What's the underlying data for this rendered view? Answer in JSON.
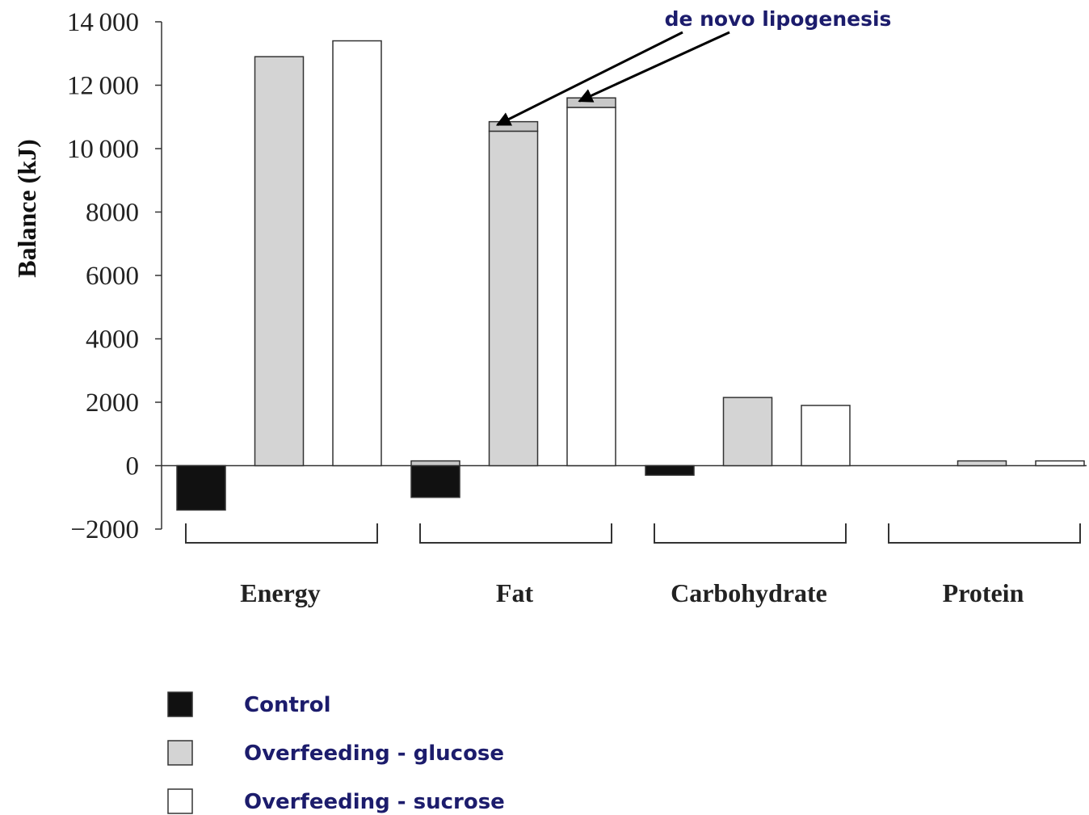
{
  "chart_data": {
    "type": "bar",
    "y_label": "Balance (kJ)",
    "categories": [
      "Energy",
      "Fat",
      "Carbohydrate",
      "Protein"
    ],
    "series": [
      {
        "name": "Control",
        "color": "#111111",
        "values": [
          -1400,
          -1000,
          -300,
          0
        ]
      },
      {
        "name": "Overfeeding - glucose",
        "color": "#d4d4d4",
        "values": [
          12900,
          10550,
          2150,
          150
        ]
      },
      {
        "name": "Overfeeding - sucrose",
        "color": "#ffffff",
        "values": [
          13400,
          11300,
          1900,
          150
        ]
      }
    ],
    "annotation": {
      "text": "de novo lipogenesis",
      "category": "Fat",
      "color": "#c8c8c8",
      "values": [
        150,
        300,
        300
      ]
    },
    "ylim": [
      -2000,
      14000
    ],
    "yticks": [
      {
        "value": -2000,
        "label": "−2000"
      },
      0,
      2000,
      4000,
      6000,
      8000,
      {
        "value": 10000,
        "label": "10 000"
      },
      {
        "value": 12000,
        "label": "12 000"
      },
      {
        "value": 14000,
        "label": "14 000"
      }
    ],
    "grid": false
  }
}
